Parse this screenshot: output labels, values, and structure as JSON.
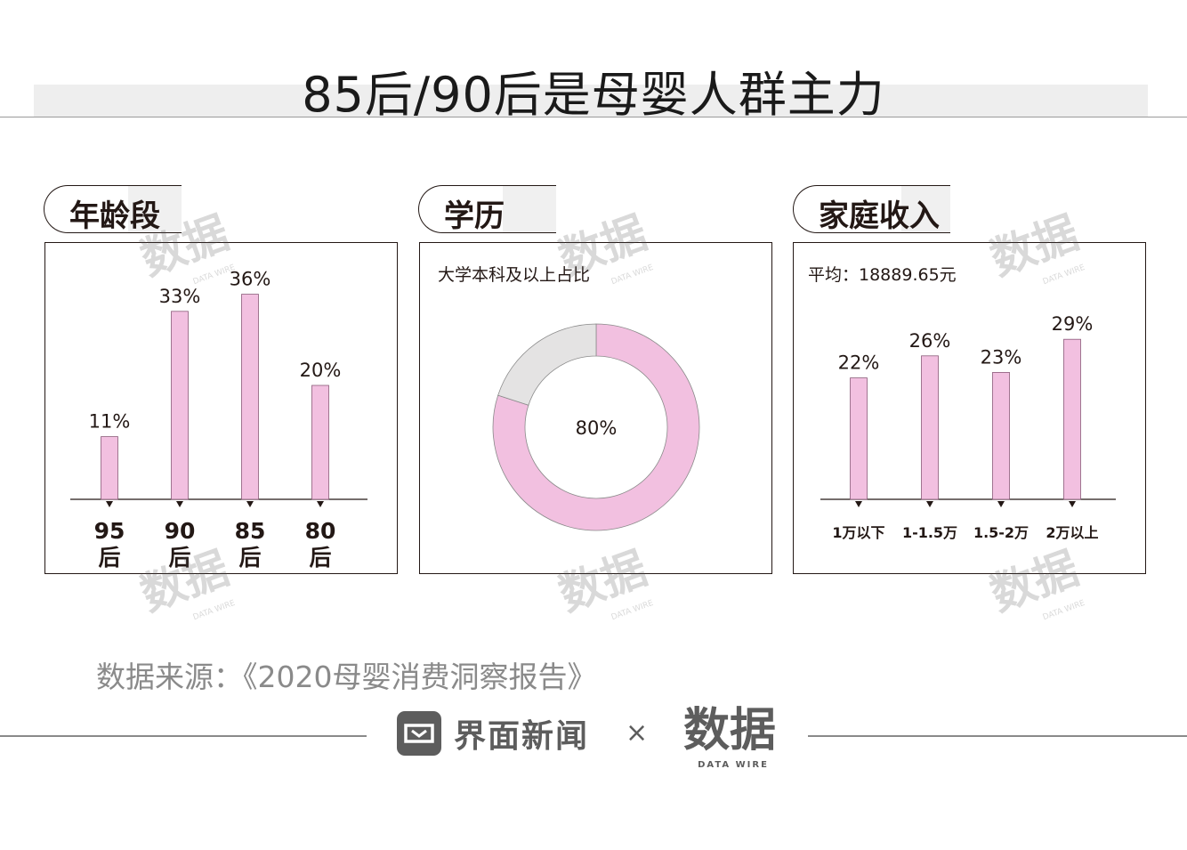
{
  "page": {
    "title": "85后/90后是母婴人群主力",
    "source": "数据来源：《2020母婴消费洞察报告》",
    "brand": "界面新闻",
    "times": "×",
    "watermark": "数据",
    "watermark_sub": "DATA WIRE",
    "colors": {
      "bar": "#f2c0e0",
      "bar_stroke": "#8a5a78",
      "donut_rest": "#e4e3e3",
      "text": "#231815"
    }
  },
  "sections": {
    "age": {
      "tab": "年龄段"
    },
    "edu": {
      "tab": "学历",
      "subtitle": "大学本科及以上占比"
    },
    "income": {
      "tab": "家庭收入",
      "subtitle": "平均：18889.65元"
    }
  },
  "chart_data": [
    {
      "type": "bar",
      "categories": [
        "95\n后",
        "90\n后",
        "85\n后",
        "80\n后"
      ],
      "values": [
        11,
        33,
        36,
        20
      ],
      "labels": [
        "11%",
        "33%",
        "36%",
        "20%"
      ],
      "title": "年龄段"
    },
    {
      "type": "pie",
      "slices": [
        {
          "label": "80%",
          "value": 80
        },
        {
          "label": "",
          "value": 20
        }
      ],
      "title": "学历",
      "subtitle": "大学本科及以上占比",
      "donut": true
    },
    {
      "type": "bar",
      "categories": [
        "1万以下",
        "1-1.5万",
        "1.5-2万",
        "2万以上"
      ],
      "values": [
        22,
        26,
        23,
        29
      ],
      "labels": [
        "22%",
        "26%",
        "23%",
        "29%"
      ],
      "title": "家庭收入",
      "subtitle": "平均：18889.65元"
    }
  ]
}
